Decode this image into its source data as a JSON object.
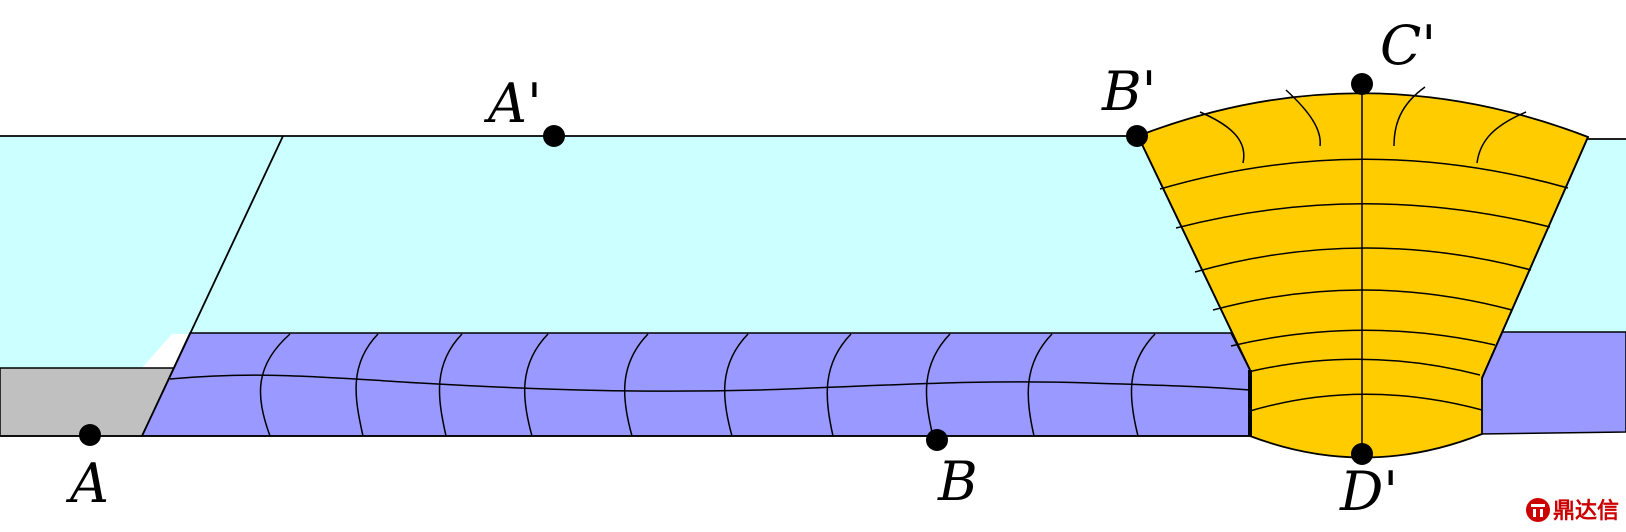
{
  "points": {
    "A": "A",
    "A_prime": "A'",
    "B": "B",
    "B_prime": "B'",
    "C_prime": "C'",
    "D_prime": "D'"
  },
  "watermark": {
    "text": "鼎达信"
  },
  "colors": {
    "upper_layer": "#ccffff",
    "lower_layer": "#9999ff",
    "weld_zone": "#ffcc00",
    "base_strip": "#c0c0c0",
    "outline": "#000000",
    "watermark": "#cc0000"
  }
}
